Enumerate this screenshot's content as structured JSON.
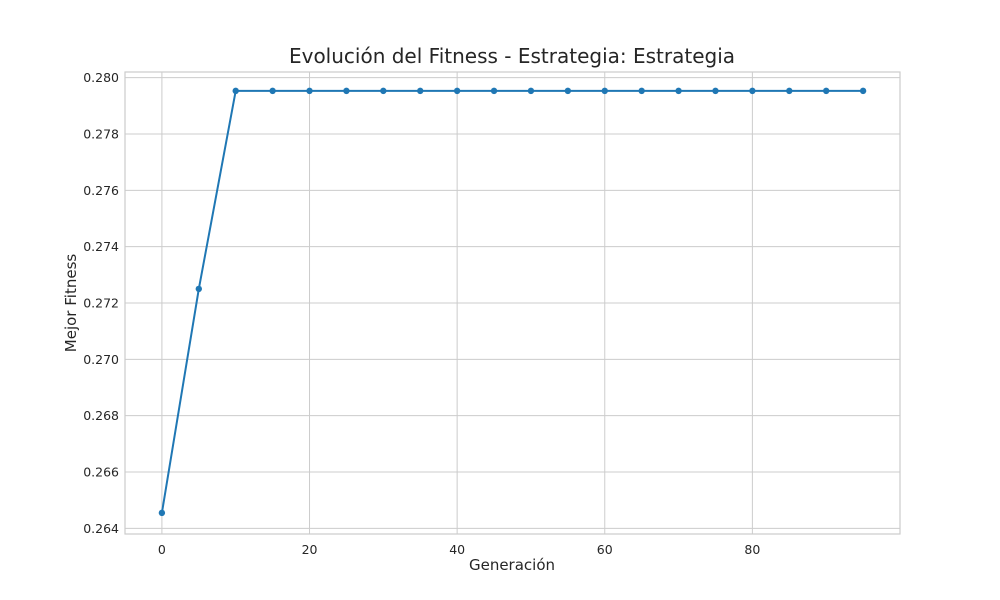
{
  "chart_data": {
    "type": "line",
    "title": "Evolución del Fitness - Estrategia: Estrategia",
    "xlabel": "Generación",
    "ylabel": "Mejor Fitness",
    "xlim": [
      -5,
      100
    ],
    "ylim": [
      0.2638,
      0.2802
    ],
    "x_ticks": [
      0,
      20,
      40,
      60,
      80
    ],
    "y_ticks": [
      0.264,
      0.266,
      0.268,
      0.27,
      0.272,
      0.274,
      0.276,
      0.278,
      0.28
    ],
    "y_tick_labels": [
      "0.264",
      "0.266",
      "0.268",
      "0.270",
      "0.272",
      "0.274",
      "0.276",
      "0.278",
      "0.280"
    ],
    "grid": true,
    "series": [
      {
        "color": "#1f77b4",
        "marker": "circle",
        "x": [
          0,
          5,
          10,
          15,
          20,
          25,
          30,
          35,
          40,
          45,
          50,
          55,
          60,
          65,
          70,
          75,
          80,
          85,
          90,
          95
        ],
        "y": [
          0.26455,
          0.2725,
          0.27953,
          0.27953,
          0.27953,
          0.27953,
          0.27953,
          0.27953,
          0.27953,
          0.27953,
          0.27953,
          0.27953,
          0.27953,
          0.27953,
          0.27953,
          0.27953,
          0.27953,
          0.27953,
          0.27953,
          0.27953
        ]
      }
    ]
  }
}
